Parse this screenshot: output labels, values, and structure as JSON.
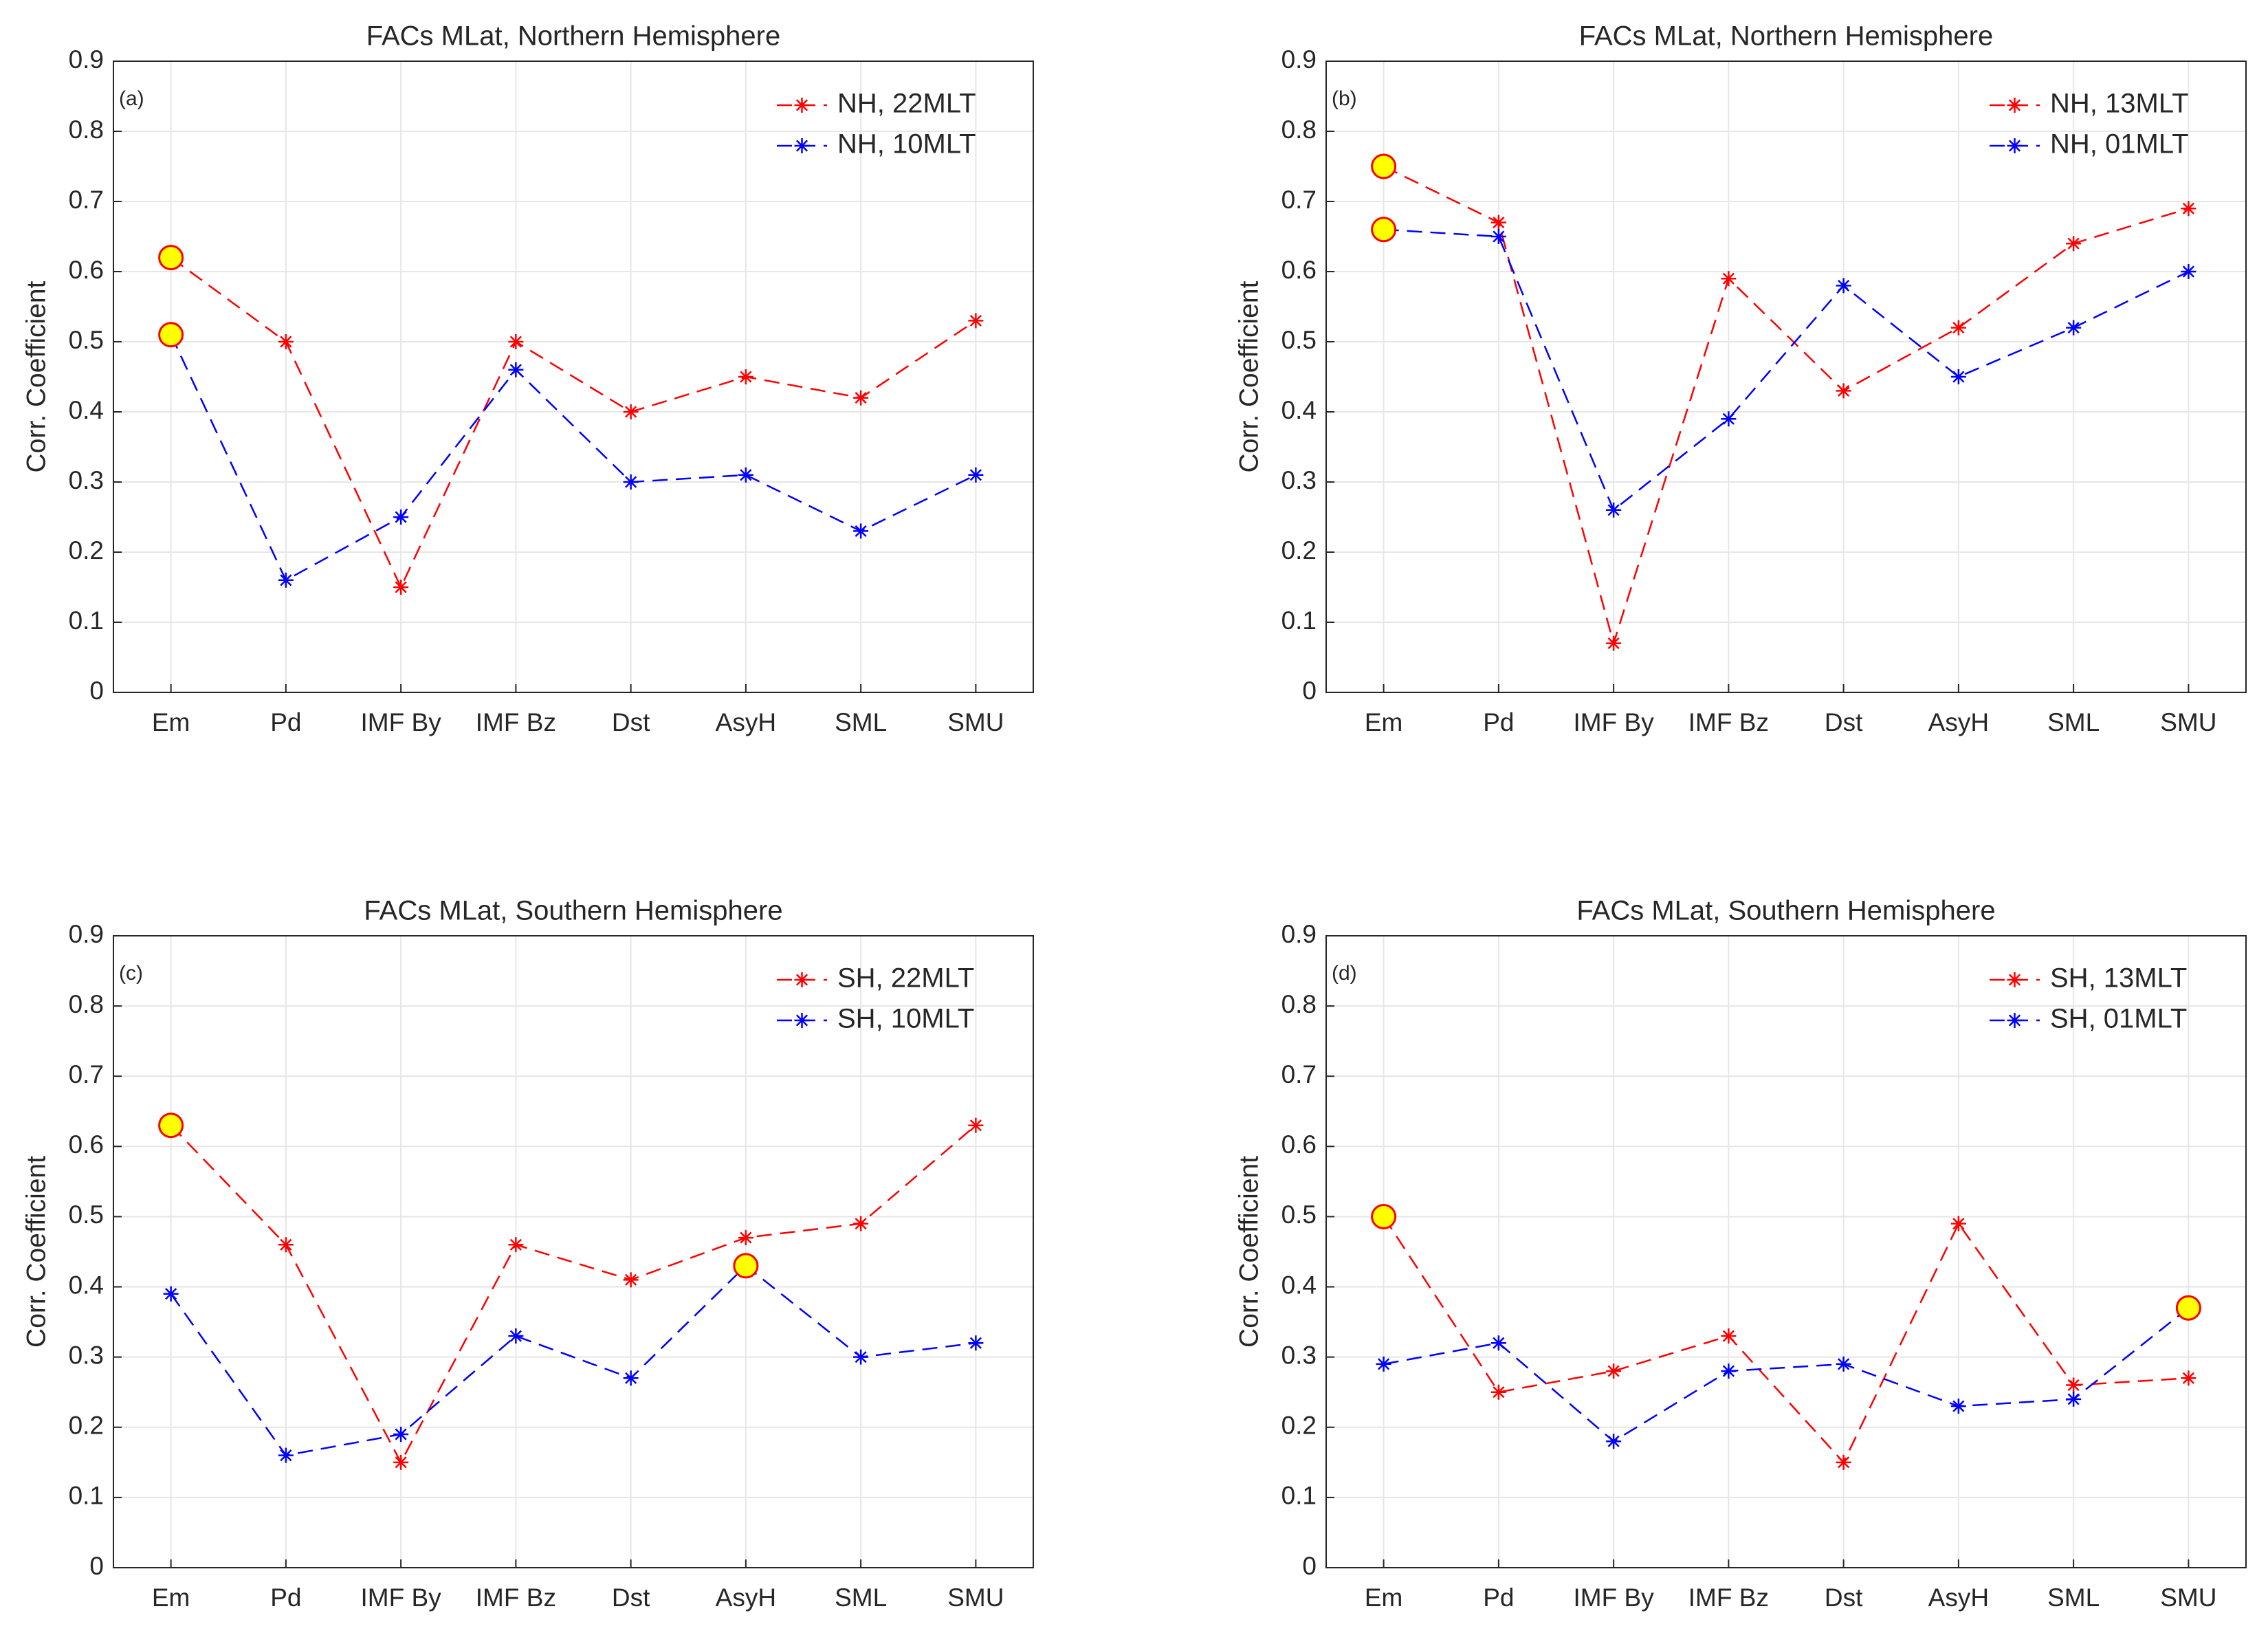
{
  "chart_data": [
    {
      "type": "line",
      "title": "FACs MLat, Northern Hemisphere",
      "panel_label": "(a)",
      "ylabel": "Corr. Coefficient",
      "categories": [
        "Em",
        "Pd",
        "IMF By",
        "IMF Bz",
        "Dst",
        "AsyH",
        "SML",
        "SMU"
      ],
      "series": [
        {
          "name": "NH, 22MLT",
          "color": "#ff0000",
          "values": [
            0.62,
            0.5,
            0.15,
            0.5,
            0.4,
            0.45,
            0.42,
            0.53
          ],
          "highlight_points": [
            0
          ]
        },
        {
          "name": "NH, 10MLT",
          "color": "#0000ff",
          "values": [
            0.51,
            0.16,
            0.25,
            0.46,
            0.3,
            0.31,
            0.23,
            0.31
          ],
          "highlight_points": [
            0
          ]
        }
      ],
      "ylim": [
        0,
        0.9
      ],
      "yticks": [
        0,
        0.1,
        0.2,
        0.3,
        0.4,
        0.5,
        0.6,
        0.7,
        0.8,
        0.9
      ],
      "grid": true,
      "legend": "upper-right"
    },
    {
      "type": "line",
      "title": "FACs MLat, Northern Hemisphere",
      "panel_label": "(b)",
      "ylabel": "Corr. Coefficient",
      "categories": [
        "Em",
        "Pd",
        "IMF By",
        "IMF Bz",
        "Dst",
        "AsyH",
        "SML",
        "SMU"
      ],
      "series": [
        {
          "name": "NH, 13MLT",
          "color": "#ff0000",
          "values": [
            0.75,
            0.67,
            0.07,
            0.59,
            0.43,
            0.52,
            0.64,
            0.69
          ],
          "highlight_points": [
            0
          ]
        },
        {
          "name": "NH, 01MLT",
          "color": "#0000ff",
          "values": [
            0.66,
            0.65,
            0.26,
            0.39,
            0.58,
            0.45,
            0.52,
            0.6
          ],
          "highlight_points": [
            0
          ]
        }
      ],
      "ylim": [
        0,
        0.9
      ],
      "yticks": [
        0,
        0.1,
        0.2,
        0.3,
        0.4,
        0.5,
        0.6,
        0.7,
        0.8,
        0.9
      ],
      "grid": true,
      "legend": "upper-right"
    },
    {
      "type": "line",
      "title": "FACs MLat, Southern Hemisphere",
      "panel_label": "(c)",
      "ylabel": "Corr. Coefficient",
      "categories": [
        "Em",
        "Pd",
        "IMF By",
        "IMF Bz",
        "Dst",
        "AsyH",
        "SML",
        "SMU"
      ],
      "series": [
        {
          "name": "SH, 22MLT",
          "color": "#ff0000",
          "values": [
            0.63,
            0.46,
            0.15,
            0.46,
            0.41,
            0.47,
            0.49,
            0.63
          ],
          "highlight_points": [
            0
          ]
        },
        {
          "name": "SH, 10MLT",
          "color": "#0000ff",
          "values": [
            0.39,
            0.16,
            0.19,
            0.33,
            0.27,
            0.43,
            0.3,
            0.32
          ],
          "highlight_points": [
            5
          ]
        }
      ],
      "ylim": [
        0,
        0.9
      ],
      "yticks": [
        0,
        0.1,
        0.2,
        0.3,
        0.4,
        0.5,
        0.6,
        0.7,
        0.8,
        0.9
      ],
      "grid": true,
      "legend": "upper-right"
    },
    {
      "type": "line",
      "title": "FACs MLat, Southern Hemisphere",
      "panel_label": "(d)",
      "ylabel": "Corr. Coefficient",
      "categories": [
        "Em",
        "Pd",
        "IMF By",
        "IMF Bz",
        "Dst",
        "AsyH",
        "SML",
        "SMU"
      ],
      "series": [
        {
          "name": "SH, 13MLT",
          "color": "#ff0000",
          "values": [
            0.5,
            0.25,
            0.28,
            0.33,
            0.15,
            0.49,
            0.26,
            0.27
          ],
          "highlight_points": [
            0
          ]
        },
        {
          "name": "SH, 01MLT",
          "color": "#0000ff",
          "values": [
            0.29,
            0.32,
            0.18,
            0.28,
            0.29,
            0.23,
            0.24,
            0.37
          ],
          "highlight_points": [
            7
          ]
        }
      ],
      "ylim": [
        0,
        0.9
      ],
      "yticks": [
        0,
        0.1,
        0.2,
        0.3,
        0.4,
        0.5,
        0.6,
        0.7,
        0.8,
        0.9
      ],
      "grid": true,
      "legend": "upper-right"
    }
  ]
}
